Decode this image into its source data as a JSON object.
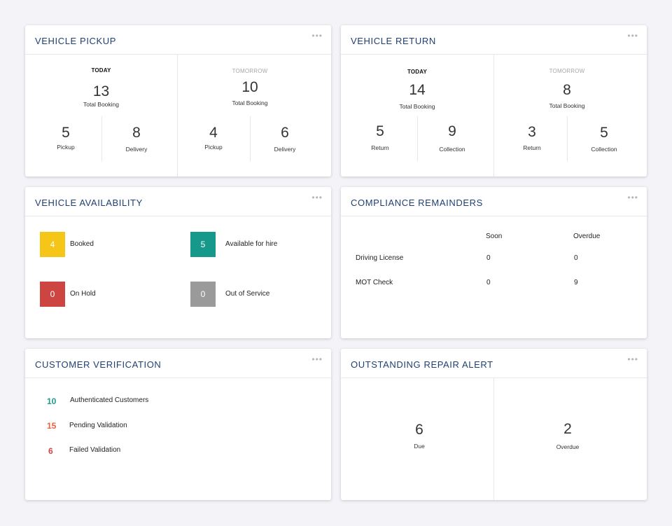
{
  "vehicle_pickup": {
    "title": "VEHICLE PICKUP",
    "more": "•••",
    "today": {
      "label": "TODAY",
      "total": "13",
      "total_label": "Total Booking",
      "left_value": "5",
      "left_label": "Pickup",
      "right_value": "8",
      "right_label": "Delivery"
    },
    "tomorrow": {
      "label": "TOMORROW",
      "total": "10",
      "total_label": "Total Booking",
      "left_value": "4",
      "left_label": "Pickup",
      "right_value": "6",
      "right_label": "Delivery"
    }
  },
  "vehicle_return": {
    "title": "VEHICLE RETURN",
    "more": "•••",
    "today": {
      "label": "TODAY",
      "total": "14",
      "total_label": "Total Booking",
      "left_value": "5",
      "left_label": "Return",
      "right_value": "9",
      "right_label": "Collection"
    },
    "tomorrow": {
      "label": "TOMORROW",
      "total": "8",
      "total_label": "Total Booking",
      "left_value": "3",
      "left_label": "Return",
      "right_value": "5",
      "right_label": "Collection"
    }
  },
  "vehicle_availability": {
    "title": "VEHICLE AVAILABILITY",
    "more": "•••",
    "items": [
      {
        "value": "4",
        "label": "Booked",
        "color": "#f5c518"
      },
      {
        "value": "5",
        "label": "Available for hire",
        "color": "#16998a"
      },
      {
        "value": "0",
        "label": "On Hold",
        "color": "#cd4541"
      },
      {
        "value": "0",
        "label": "Out of Service",
        "color": "#9a9a9a"
      }
    ]
  },
  "compliance": {
    "title": "COMPLIANCE REMAINDERS",
    "more": "•••",
    "columns": [
      "Soon",
      "Overdue"
    ],
    "rows": [
      {
        "label": "Driving License",
        "soon": "0",
        "overdue": "0"
      },
      {
        "label": "MOT Check",
        "soon": "0",
        "overdue": "9"
      }
    ]
  },
  "customer_verification": {
    "title": "CUSTOMER VERIFICATION",
    "more": "•••",
    "items": [
      {
        "value": "10",
        "label": "Authenticated Customers"
      },
      {
        "value": "15",
        "label": "Pending Validation"
      },
      {
        "value": "6",
        "label": "Failed Validation"
      }
    ]
  },
  "repair_alert": {
    "title": "OUTSTANDING REPAIR ALERT",
    "more": "•••",
    "due_value": "6",
    "due_label": "Due",
    "overdue_value": "2",
    "overdue_label": "Overdue"
  }
}
